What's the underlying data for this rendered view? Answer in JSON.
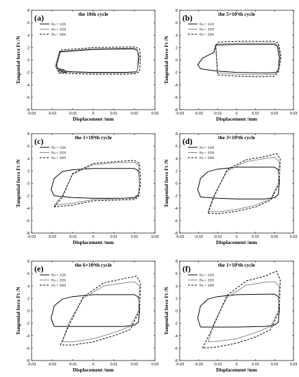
{
  "chart_data": [
    {
      "type": "line",
      "panel": "(a)",
      "title": "the 10th cycle",
      "xlabel": "Displacement /mm",
      "ylabel": "Tangential force Ft /N",
      "xlim": [
        -0.03,
        0.03
      ],
      "ylim": [
        -8,
        8
      ],
      "xticks": [
        "-0.03",
        "-0.02",
        "-0.01",
        "0",
        "0.01",
        "0.02",
        "0.03"
      ],
      "yticks": [
        "-8",
        "-6",
        "-4",
        "-2",
        "0",
        "2",
        "4",
        "6",
        "8"
      ],
      "legend_position": "top-left",
      "series": [
        {
          "name": "Fn = 15N",
          "style": "solid",
          "color": "#000000",
          "x": [
            -0.014,
            -0.017,
            -0.018,
            -0.016,
            0.0,
            0.02,
            0.0215,
            0.022,
            0.0215,
            0.021,
            0.015,
            0.0,
            -0.01,
            -0.017,
            -0.014
          ],
          "y": [
            -1.6,
            -1.4,
            -0.9,
            1.3,
            1.7,
            1.8,
            1.5,
            0.5,
            -1.5,
            -1.9,
            -2.0,
            -2.0,
            -1.9,
            -1.7,
            -1.6
          ]
        },
        {
          "name": "Fn = 35N",
          "style": "solid",
          "color": "#888888",
          "x": [
            -0.0135,
            -0.0175,
            -0.0185,
            -0.0165,
            0.0,
            0.02,
            0.0215,
            0.0225,
            0.0215,
            0.021,
            0.015,
            0.0,
            -0.01,
            -0.0175,
            -0.0135
          ],
          "y": [
            -1.7,
            -1.5,
            -1.0,
            1.4,
            1.8,
            1.9,
            1.6,
            0.5,
            -1.6,
            -2.0,
            -2.1,
            -2.1,
            -2.0,
            -1.8,
            -1.7
          ]
        },
        {
          "name": "Fn = 50N",
          "style": "dashed",
          "color": "#000000",
          "x": [
            -0.013,
            -0.017,
            -0.018,
            -0.016,
            0.0,
            0.02,
            0.0225,
            0.023,
            0.0225,
            0.021,
            0.015,
            0.0,
            -0.01,
            -0.017,
            -0.013
          ],
          "y": [
            -2.0,
            -1.8,
            -1.2,
            1.6,
            2.0,
            2.1,
            1.8,
            0.5,
            -1.8,
            -2.2,
            -2.3,
            -2.3,
            -2.2,
            -2.1,
            -2.0
          ]
        }
      ]
    },
    {
      "type": "line",
      "panel": "(b)",
      "title": "the 5×10³th cycle",
      "xlabel": "Displacement /mm",
      "ylabel": "Tangential force Ft /N",
      "xlim": [
        -0.03,
        0.03
      ],
      "ylim": [
        -8,
        8
      ],
      "xticks": [
        "-0.03",
        "-0.02",
        "-0.01",
        "0",
        "0.01",
        "0.02",
        "0.03"
      ],
      "yticks": [
        "-8",
        "-6",
        "-4",
        "-2",
        "0",
        "2",
        "4",
        "6",
        "8"
      ],
      "legend_position": "top-left",
      "series": [
        {
          "name": "Fn = 15N",
          "style": "solid",
          "color": "#000000",
          "x": [
            -0.015,
            -0.019,
            -0.0205,
            -0.018,
            -0.012,
            -0.011,
            0.0,
            0.02,
            0.0215,
            0.0225,
            0.022,
            0.021,
            0.015,
            0.0,
            -0.01,
            -0.015
          ],
          "y": [
            -1.6,
            -1.4,
            -0.8,
            0.3,
            1.2,
            2.4,
            2.5,
            2.5,
            2.2,
            0.5,
            -1.5,
            -2.0,
            -2.1,
            -2.0,
            -1.8,
            -1.6
          ]
        },
        {
          "name": "Fn = 35N",
          "style": "solid",
          "color": "#888888",
          "x": [
            -0.011,
            -0.01,
            0.0,
            0.02,
            0.022,
            0.023,
            0.022,
            0.02,
            0.013,
            0.0,
            -0.01,
            -0.011
          ],
          "y": [
            2.1,
            2.6,
            2.7,
            2.7,
            2.4,
            0.5,
            -1.8,
            -2.3,
            -2.4,
            -2.3,
            -2.1,
            2.1
          ]
        },
        {
          "name": "Fn = 50N",
          "style": "dashed",
          "color": "#000000",
          "x": [
            -0.011,
            -0.0095,
            0.0,
            0.02,
            0.022,
            0.0235,
            0.022,
            0.02,
            0.012,
            0.0,
            -0.01,
            -0.011
          ],
          "y": [
            2.4,
            2.9,
            3.0,
            3.0,
            2.7,
            0.5,
            -2.0,
            -2.6,
            -2.7,
            -2.6,
            -2.4,
            2.4
          ]
        }
      ]
    },
    {
      "type": "line",
      "panel": "(c)",
      "title": "the 1×10⁴th cycle",
      "xlabel": "Displacement /mm",
      "ylabel": "Tangential force Ft /N",
      "xlim": [
        -0.03,
        0.03
      ],
      "ylim": [
        -8,
        8
      ],
      "xticks": [
        "-0.03",
        "-0.02",
        "-0.01",
        "0",
        "0.01",
        "0.02",
        "0.03"
      ],
      "yticks": [
        "-8",
        "-6",
        "-4",
        "-2",
        "0",
        "2",
        "4",
        "6",
        "8"
      ],
      "legend_position": "top-left",
      "series": [
        {
          "name": "Fn = 15N",
          "style": "solid",
          "color": "#000000",
          "x": [
            -0.019,
            -0.0205,
            -0.019,
            -0.015,
            -0.01,
            0.0,
            0.02,
            0.022,
            0.0225,
            0.022,
            0.02,
            0.015,
            0.0,
            -0.01,
            -0.019
          ],
          "y": [
            -2.0,
            -1.0,
            0.8,
            1.9,
            2.2,
            2.4,
            2.4,
            2.0,
            0.0,
            -1.8,
            -2.3,
            -2.4,
            -2.4,
            -2.3,
            -2.0
          ]
        },
        {
          "name": "Fn = 35N",
          "style": "solid",
          "color": "#888888",
          "x": [
            -0.019,
            -0.015,
            -0.01,
            0.0,
            0.01,
            0.02,
            0.022,
            0.0225,
            0.022,
            0.02,
            0.0,
            -0.01,
            -0.019
          ],
          "y": [
            -3.5,
            -2.0,
            1.5,
            3.0,
            3.3,
            3.4,
            3.0,
            0.0,
            -2.0,
            -2.4,
            -2.6,
            -3.2,
            -3.5
          ]
        },
        {
          "name": "Fn = 50N",
          "style": "dashed",
          "color": "#000000",
          "x": [
            -0.019,
            -0.015,
            -0.01,
            0.0,
            0.01,
            0.02,
            0.0225,
            0.023,
            0.022,
            0.02,
            0.0,
            -0.01,
            -0.019
          ],
          "y": [
            -3.8,
            -2.2,
            1.6,
            3.2,
            3.5,
            3.7,
            3.2,
            0.0,
            -2.2,
            -2.6,
            -2.8,
            -3.5,
            -3.8
          ]
        }
      ]
    },
    {
      "type": "line",
      "panel": "(d)",
      "title": "the 3×10⁴th cycle",
      "xlabel": "Displacement /mm",
      "ylabel": "Tangential force Ft /N",
      "xlim": [
        -0.03,
        0.03
      ],
      "ylim": [
        -8,
        8
      ],
      "xticks": [
        "-0.03",
        "-0.02",
        "-0.01",
        "0",
        "0.01",
        "0.02",
        "0.03"
      ],
      "yticks": [
        "-8",
        "-6",
        "-4",
        "-2",
        "0",
        "2",
        "4",
        "6",
        "8"
      ],
      "legend_position": "top-left",
      "series": [
        {
          "name": "Fn = 15N",
          "style": "solid",
          "color": "#000000",
          "x": [
            -0.019,
            -0.0205,
            -0.019,
            -0.015,
            -0.01,
            0.0,
            0.02,
            0.022,
            0.0225,
            0.022,
            0.02,
            0.015,
            0.0,
            -0.01,
            -0.019
          ],
          "y": [
            -2.2,
            -1.0,
            0.8,
            1.9,
            2.3,
            2.6,
            2.6,
            2.2,
            0.0,
            -1.8,
            -2.3,
            -2.5,
            -2.5,
            -2.4,
            -2.2
          ]
        },
        {
          "name": "Fn = 35N",
          "style": "solid",
          "color": "#888888",
          "x": [
            -0.015,
            -0.012,
            -0.005,
            0.005,
            0.015,
            0.02,
            0.0225,
            0.022,
            0.018,
            0.01,
            0.0,
            -0.01,
            -0.015
          ],
          "y": [
            -4.5,
            -2.0,
            2.0,
            3.5,
            4.0,
            4.2,
            3.5,
            0.0,
            -2.5,
            -3.5,
            -4.2,
            -4.6,
            -4.5
          ]
        },
        {
          "name": "Fn = 50N",
          "style": "dashed",
          "color": "#000000",
          "x": [
            -0.015,
            -0.012,
            -0.005,
            0.005,
            0.015,
            0.021,
            0.023,
            0.0225,
            0.018,
            0.01,
            0.0,
            -0.01,
            -0.015
          ],
          "y": [
            -4.8,
            -2.2,
            2.2,
            3.8,
            4.3,
            4.8,
            4.0,
            0.0,
            -2.7,
            -3.8,
            -4.5,
            -4.9,
            -4.8
          ]
        }
      ]
    },
    {
      "type": "line",
      "panel": "(e)",
      "title": "the 6×10⁴th cycle",
      "xlabel": "Displacement /mm",
      "ylabel": "Tangential force Ft /N",
      "xlim": [
        -0.03,
        0.03
      ],
      "ylim": [
        -8,
        8
      ],
      "xticks": [
        "-0.03",
        "-0.02",
        "-0.01",
        "0",
        "0.01",
        "0.02",
        "0.03"
      ],
      "yticks": [
        "-8",
        "-6",
        "-4",
        "-2",
        "0",
        "2",
        "4",
        "6",
        "8"
      ],
      "legend_position": "top-left",
      "series": [
        {
          "name": "Fn = 15N",
          "style": "solid",
          "color": "#000000",
          "x": [
            -0.019,
            -0.0205,
            -0.019,
            -0.015,
            -0.01,
            0.0,
            0.02,
            0.022,
            0.0225,
            0.022,
            0.02,
            0.015,
            0.0,
            -0.01,
            -0.019
          ],
          "y": [
            -2.5,
            -1.2,
            0.8,
            1.9,
            2.3,
            2.6,
            2.6,
            2.2,
            0.0,
            -1.8,
            -2.3,
            -2.5,
            -2.5,
            -2.5,
            -2.5
          ]
        },
        {
          "name": "Fn = 35N",
          "style": "solid",
          "color": "#888888",
          "x": [
            -0.015,
            -0.012,
            -0.005,
            0.005,
            0.015,
            0.02,
            0.0225,
            0.022,
            0.018,
            0.01,
            0.0,
            -0.01,
            -0.015
          ],
          "y": [
            -5.0,
            -2.0,
            2.0,
            4.0,
            4.5,
            4.7,
            4.0,
            0.0,
            -2.5,
            -3.5,
            -4.5,
            -5.0,
            -5.0
          ]
        },
        {
          "name": "Fn = 50N",
          "style": "dashed",
          "color": "#000000",
          "x": [
            -0.016,
            -0.012,
            -0.005,
            0.005,
            0.015,
            0.021,
            0.023,
            0.0225,
            0.018,
            0.01,
            0.0,
            -0.01,
            -0.016
          ],
          "y": [
            -5.5,
            -2.5,
            2.2,
            4.5,
            5.2,
            5.6,
            4.5,
            0.0,
            -3.0,
            -4.0,
            -5.0,
            -5.5,
            -5.5
          ]
        }
      ]
    },
    {
      "type": "line",
      "panel": "(f)",
      "title": "the 1×10⁵th cycle",
      "xlabel": "Displacement /mm",
      "ylabel": "Tangential force Ft /N",
      "xlim": [
        -0.03,
        0.03
      ],
      "ylim": [
        -8,
        8
      ],
      "xticks": [
        "-0.03",
        "-0.02",
        "-0.01",
        "0",
        "0.01",
        "0.02",
        "0.03"
      ],
      "yticks": [
        "-8",
        "-6",
        "-4",
        "-2",
        "0",
        "2",
        "4",
        "6",
        "8"
      ],
      "legend_position": "top-left",
      "series": [
        {
          "name": "Fn = 15N",
          "style": "solid",
          "color": "#000000",
          "x": [
            -0.019,
            -0.0205,
            -0.019,
            -0.015,
            -0.01,
            0.0,
            0.02,
            0.022,
            0.0225,
            0.022,
            0.02,
            0.015,
            0.0,
            -0.01,
            -0.019
          ],
          "y": [
            -2.6,
            -1.2,
            0.8,
            1.9,
            2.3,
            2.6,
            2.7,
            2.3,
            0.0,
            -1.8,
            -2.3,
            -2.5,
            -2.6,
            -2.6,
            -2.6
          ]
        },
        {
          "name": "Fn = 35N",
          "style": "solid",
          "color": "#888888",
          "x": [
            -0.015,
            -0.012,
            -0.005,
            0.005,
            0.015,
            0.02,
            0.0225,
            0.022,
            0.018,
            0.01,
            0.0,
            -0.01,
            -0.015
          ],
          "y": [
            -5.0,
            -2.0,
            2.2,
            4.1,
            4.6,
            4.7,
            4.0,
            0.0,
            -2.5,
            -3.5,
            -4.5,
            -4.9,
            -5.0
          ]
        },
        {
          "name": "Fn = 50N",
          "style": "dashed",
          "color": "#000000",
          "x": [
            -0.018,
            -0.013,
            -0.005,
            0.005,
            0.015,
            0.021,
            0.023,
            0.0225,
            0.018,
            0.01,
            0.0,
            -0.01,
            -0.018
          ],
          "y": [
            -6.0,
            -3.0,
            2.5,
            4.8,
            5.6,
            6.4,
            5.0,
            0.0,
            -3.0,
            -4.2,
            -5.2,
            -5.8,
            -6.0
          ]
        }
      ]
    }
  ]
}
